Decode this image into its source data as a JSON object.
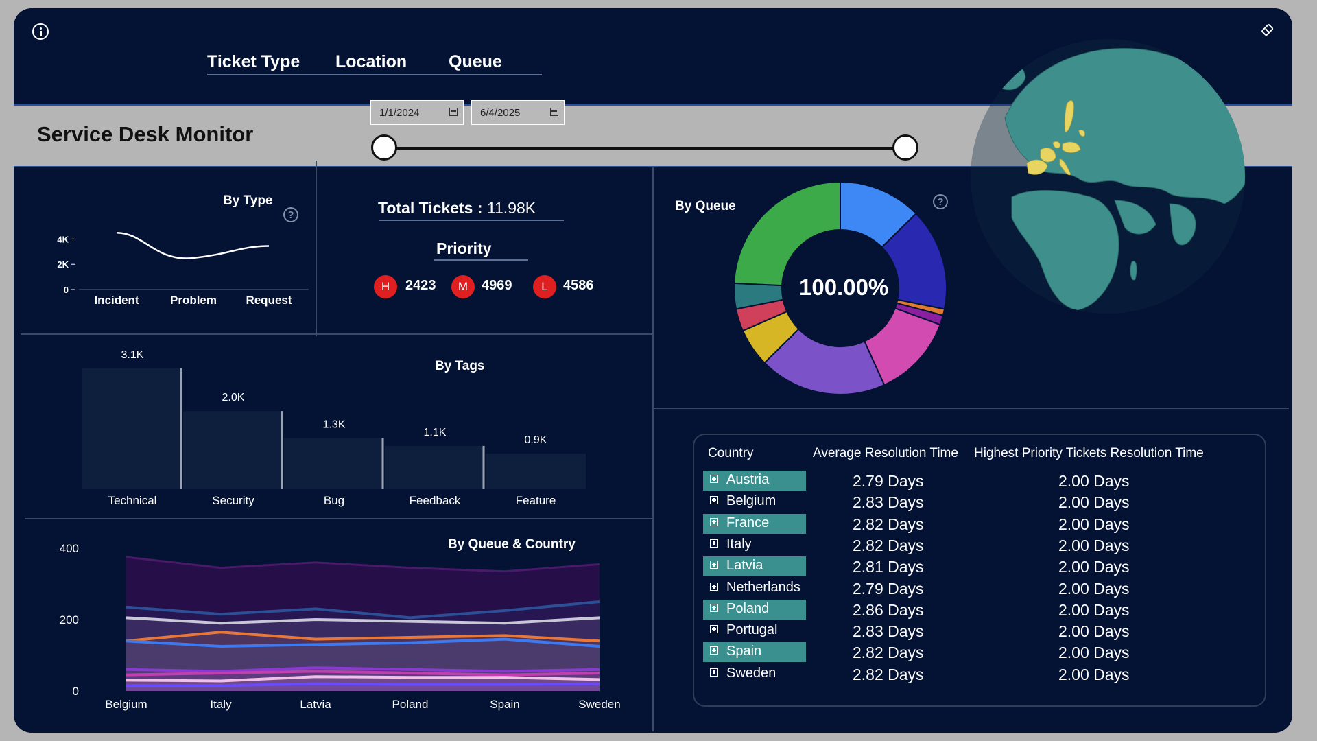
{
  "header": {
    "tabs": [
      {
        "label": "Ticket Type"
      },
      {
        "label": "Location"
      },
      {
        "label": "Queue"
      }
    ],
    "page_title": "Service Desk Monitor",
    "date_from": "1/1/2024",
    "date_to": "6/4/2025",
    "slider_range_fraction": [
      0.0,
      1.0
    ]
  },
  "icons": {
    "info": "info-icon",
    "eraser": "eraser-icon",
    "help": "help-icon",
    "calendar": "calendar-icon",
    "expand": "expand-plus-icon"
  },
  "colors": {
    "background": "#041333",
    "accent_teal": "#3a8f8f",
    "priority_red": "#e02020",
    "globe": "#3f8f8c",
    "highlight_countries": "#e8d460"
  },
  "by_type": {
    "title": "By Type",
    "chart_data": {
      "type": "line",
      "categories": [
        "Incident",
        "Problem",
        "Request"
      ],
      "values": [
        4500,
        2500,
        3450
      ],
      "yticks": [
        "0",
        "2K",
        "4K"
      ],
      "ylim": [
        0,
        5000
      ],
      "title": "By Type"
    }
  },
  "totals": {
    "label": "Total Tickets :",
    "value": "11.98K",
    "priority_title": "Priority",
    "priorities": [
      {
        "badge": "H",
        "value": "2423"
      },
      {
        "badge": "M",
        "value": "4969"
      },
      {
        "badge": "L",
        "value": "4586"
      }
    ]
  },
  "by_queue": {
    "title": "By Queue",
    "center_label": "100.00%",
    "chart_data": {
      "type": "pie",
      "values": [
        13,
        16,
        1,
        1.5,
        13,
        20,
        6,
        3.5,
        4,
        25
      ],
      "colors": [
        "#3d88f5",
        "#2828b0",
        "#e07a30",
        "#8a1fa0",
        "#d24bb0",
        "#7b52c8",
        "#d6b625",
        "#d1405a",
        "#2a7a80",
        "#3caa48"
      ],
      "title": "By Queue"
    }
  },
  "by_tags": {
    "title": "By Tags",
    "chart_data": {
      "type": "bar",
      "categories": [
        "Technical",
        "Security",
        "Bug",
        "Feedback",
        "Feature"
      ],
      "values": [
        3.1,
        2.0,
        1.3,
        1.1,
        0.9
      ],
      "data_labels": [
        "3.1K",
        "2.0K",
        "1.3K",
        "1.1K",
        "0.9K"
      ],
      "ylim": [
        0,
        3.1
      ],
      "title": "By Tags"
    }
  },
  "by_queue_country": {
    "title": "By Queue & Country",
    "chart_data": {
      "type": "area",
      "categories": [
        "Belgium",
        "Italy",
        "Latvia",
        "Poland",
        "Spain",
        "Sweden"
      ],
      "yticks": [
        "0",
        "200",
        "400"
      ],
      "ylim": [
        0,
        400
      ],
      "area_top": [
        375,
        345,
        360,
        345,
        335,
        355
      ],
      "series": [
        {
          "color": "#2c4f96",
          "values": [
            235,
            215,
            230,
            205,
            225,
            250
          ]
        },
        {
          "color": "#c8c8d8",
          "values": [
            205,
            190,
            200,
            195,
            190,
            205
          ]
        },
        {
          "color": "#e8773a",
          "values": [
            140,
            165,
            145,
            150,
            155,
            140
          ]
        },
        {
          "color": "#3d7af0",
          "values": [
            140,
            125,
            130,
            135,
            145,
            125
          ]
        },
        {
          "color": "#8a3ad0",
          "values": [
            60,
            55,
            65,
            60,
            55,
            60
          ]
        },
        {
          "color": "#c040b0",
          "values": [
            45,
            50,
            55,
            50,
            45,
            50
          ]
        },
        {
          "color": "#f0c0e8",
          "values": [
            30,
            28,
            40,
            38,
            38,
            32
          ]
        },
        {
          "color": "#6a4aff",
          "values": [
            15,
            15,
            20,
            18,
            18,
            20
          ]
        }
      ],
      "title": "By Queue & Country"
    }
  },
  "table": {
    "headers": [
      "Country",
      "Average Resolution Time",
      "Highest Priority Tickets Resolution Time"
    ],
    "rows": [
      {
        "country": "Austria",
        "avg": "2.79 Days",
        "high": "2.00 Days",
        "highlight": true
      },
      {
        "country": "Belgium",
        "avg": "2.83 Days",
        "high": "2.00 Days",
        "highlight": false
      },
      {
        "country": "France",
        "avg": "2.82 Days",
        "high": "2.00 Days",
        "highlight": true
      },
      {
        "country": "Italy",
        "avg": "2.82 Days",
        "high": "2.00 Days",
        "highlight": false
      },
      {
        "country": "Latvia",
        "avg": "2.81 Days",
        "high": "2.00 Days",
        "highlight": true
      },
      {
        "country": "Netherlands",
        "avg": "2.79 Days",
        "high": "2.00 Days",
        "highlight": false
      },
      {
        "country": "Poland",
        "avg": "2.86 Days",
        "high": "2.00 Days",
        "highlight": true
      },
      {
        "country": "Portugal",
        "avg": "2.83 Days",
        "high": "2.00 Days",
        "highlight": false
      },
      {
        "country": "Spain",
        "avg": "2.82 Days",
        "high": "2.00 Days",
        "highlight": true
      },
      {
        "country": "Sweden",
        "avg": "2.82 Days",
        "high": "2.00 Days",
        "highlight": false
      }
    ]
  }
}
